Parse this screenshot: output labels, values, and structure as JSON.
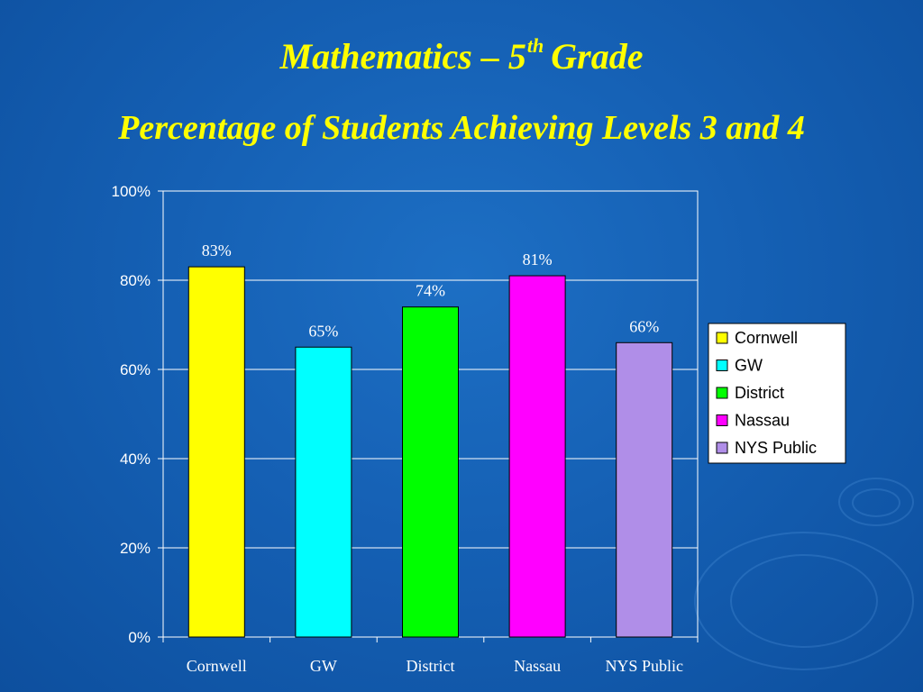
{
  "slide": {
    "title_main": "Mathematics – 5",
    "title_sup": "th",
    "title_end": "Grade",
    "subtitle": "Percentage of Students Achieving Levels 3 and 4"
  },
  "colors": {
    "background": "#1560b4",
    "title": "#ffff00",
    "axis_text": "#ffffff",
    "grid": "#ffffff"
  },
  "chart_data": {
    "type": "bar",
    "categories": [
      "Cornwell",
      "GW",
      "District",
      "Nassau",
      "NYS Public"
    ],
    "values": [
      83,
      65,
      74,
      81,
      66
    ],
    "data_labels": [
      "83%",
      "65%",
      "74%",
      "81%",
      "66%"
    ],
    "colors": [
      "#ffff00",
      "#00ffff",
      "#00ff00",
      "#ff00ff",
      "#b08ee8"
    ],
    "ylim": [
      0,
      100
    ],
    "yticks": [
      0,
      20,
      40,
      60,
      80,
      100
    ],
    "ytick_labels": [
      "0%",
      "20%",
      "40%",
      "60%",
      "80%",
      "100%"
    ],
    "grid": true,
    "legend": {
      "placement": "right",
      "entries": [
        "Cornwell",
        "GW",
        "District",
        "Nassau",
        "NYS Public"
      ]
    }
  }
}
